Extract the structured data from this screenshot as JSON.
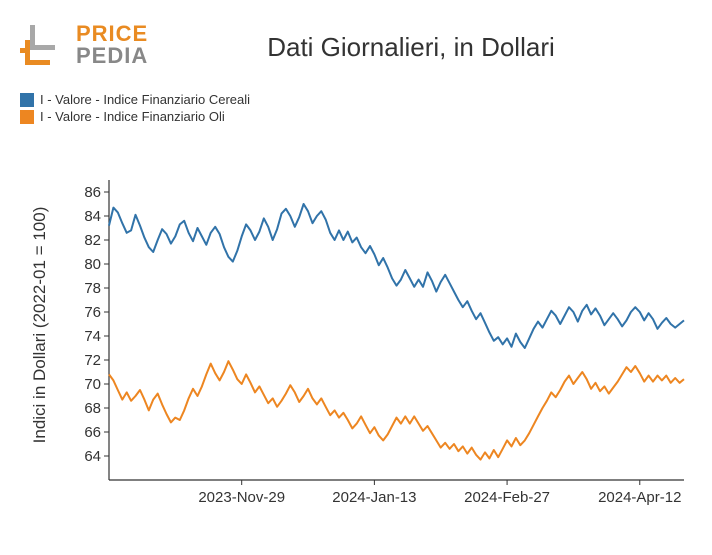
{
  "logo": {
    "line1": "PRICE",
    "line2": "PEDIA",
    "color1": "#e98b22",
    "color2": "#888888",
    "mark_gray": "#a8a8a8",
    "mark_orange": "#e98b22"
  },
  "title": "Dati Giornalieri, in Dollari",
  "y_axis_title": "Indici in Dollari (2022-01 = 100)",
  "chart": {
    "type": "line",
    "background": "#ffffff",
    "axis_color": "#333333",
    "tick_color": "#333333",
    "tick_fontsize": 15,
    "line_width": 2,
    "x_range": [
      0,
      130
    ],
    "y_range": [
      62,
      87
    ],
    "y_ticks": [
      64,
      66,
      68,
      70,
      72,
      74,
      76,
      78,
      80,
      82,
      84,
      86
    ],
    "x_ticks": [
      {
        "pos": 30,
        "label": "2023-Nov-29"
      },
      {
        "pos": 60,
        "label": "2024-Jan-13"
      },
      {
        "pos": 90,
        "label": "2024-Feb-27"
      },
      {
        "pos": 120,
        "label": "2024-Apr-12"
      }
    ],
    "series": [
      {
        "name": "I - Valore - Indice Finanziario Cereali",
        "color": "#3173a9",
        "data": [
          [
            0,
            83.2
          ],
          [
            1,
            84.7
          ],
          [
            2,
            84.3
          ],
          [
            3,
            83.4
          ],
          [
            4,
            82.6
          ],
          [
            5,
            82.8
          ],
          [
            6,
            84.1
          ],
          [
            7,
            83.2
          ],
          [
            8,
            82.2
          ],
          [
            9,
            81.4
          ],
          [
            10,
            81.0
          ],
          [
            11,
            82.0
          ],
          [
            12,
            82.9
          ],
          [
            13,
            82.5
          ],
          [
            14,
            81.7
          ],
          [
            15,
            82.3
          ],
          [
            16,
            83.3
          ],
          [
            17,
            83.6
          ],
          [
            18,
            82.6
          ],
          [
            19,
            81.9
          ],
          [
            20,
            83.0
          ],
          [
            21,
            82.3
          ],
          [
            22,
            81.6
          ],
          [
            23,
            82.6
          ],
          [
            24,
            83.1
          ],
          [
            25,
            82.5
          ],
          [
            26,
            81.4
          ],
          [
            27,
            80.6
          ],
          [
            28,
            80.2
          ],
          [
            29,
            81.1
          ],
          [
            30,
            82.3
          ],
          [
            31,
            83.3
          ],
          [
            32,
            82.8
          ],
          [
            33,
            82.0
          ],
          [
            34,
            82.7
          ],
          [
            35,
            83.8
          ],
          [
            36,
            83.1
          ],
          [
            37,
            82.0
          ],
          [
            38,
            82.9
          ],
          [
            39,
            84.2
          ],
          [
            40,
            84.6
          ],
          [
            41,
            84.0
          ],
          [
            42,
            83.1
          ],
          [
            43,
            83.9
          ],
          [
            44,
            85.0
          ],
          [
            45,
            84.4
          ],
          [
            46,
            83.4
          ],
          [
            47,
            84.0
          ],
          [
            48,
            84.4
          ],
          [
            49,
            83.7
          ],
          [
            50,
            82.6
          ],
          [
            51,
            82.0
          ],
          [
            52,
            82.8
          ],
          [
            53,
            82.0
          ],
          [
            54,
            82.7
          ],
          [
            55,
            81.8
          ],
          [
            56,
            82.2
          ],
          [
            57,
            81.4
          ],
          [
            58,
            80.9
          ],
          [
            59,
            81.5
          ],
          [
            60,
            80.8
          ],
          [
            61,
            79.9
          ],
          [
            62,
            80.5
          ],
          [
            63,
            79.7
          ],
          [
            64,
            78.8
          ],
          [
            65,
            78.2
          ],
          [
            66,
            78.7
          ],
          [
            67,
            79.5
          ],
          [
            68,
            78.8
          ],
          [
            69,
            78.1
          ],
          [
            70,
            78.7
          ],
          [
            71,
            78.1
          ],
          [
            72,
            79.3
          ],
          [
            73,
            78.6
          ],
          [
            74,
            77.7
          ],
          [
            75,
            78.5
          ],
          [
            76,
            79.1
          ],
          [
            77,
            78.4
          ],
          [
            78,
            77.7
          ],
          [
            79,
            77.0
          ],
          [
            80,
            76.4
          ],
          [
            81,
            76.9
          ],
          [
            82,
            76.1
          ],
          [
            83,
            75.4
          ],
          [
            84,
            75.9
          ],
          [
            85,
            75.1
          ],
          [
            86,
            74.3
          ],
          [
            87,
            73.6
          ],
          [
            88,
            73.9
          ],
          [
            89,
            73.3
          ],
          [
            90,
            73.8
          ],
          [
            91,
            73.1
          ],
          [
            92,
            74.2
          ],
          [
            93,
            73.5
          ],
          [
            94,
            73.0
          ],
          [
            95,
            73.8
          ],
          [
            96,
            74.6
          ],
          [
            97,
            75.2
          ],
          [
            98,
            74.7
          ],
          [
            99,
            75.4
          ],
          [
            100,
            76.1
          ],
          [
            101,
            75.7
          ],
          [
            102,
            75.0
          ],
          [
            103,
            75.7
          ],
          [
            104,
            76.4
          ],
          [
            105,
            76.0
          ],
          [
            106,
            75.2
          ],
          [
            107,
            76.1
          ],
          [
            108,
            76.6
          ],
          [
            109,
            75.8
          ],
          [
            110,
            76.3
          ],
          [
            111,
            75.7
          ],
          [
            112,
            74.9
          ],
          [
            113,
            75.4
          ],
          [
            114,
            75.9
          ],
          [
            115,
            75.4
          ],
          [
            116,
            74.8
          ],
          [
            117,
            75.3
          ],
          [
            118,
            76.0
          ],
          [
            119,
            76.4
          ],
          [
            120,
            76.0
          ],
          [
            121,
            75.3
          ],
          [
            122,
            75.9
          ],
          [
            123,
            75.4
          ],
          [
            124,
            74.6
          ],
          [
            125,
            75.1
          ],
          [
            126,
            75.5
          ],
          [
            127,
            75.0
          ],
          [
            128,
            74.7
          ],
          [
            129,
            75.0
          ],
          [
            130,
            75.3
          ]
        ]
      },
      {
        "name": "I - Valore - Indice Finanziario Oli",
        "color": "#ed8621",
        "data": [
          [
            0,
            70.8
          ],
          [
            1,
            70.3
          ],
          [
            2,
            69.5
          ],
          [
            3,
            68.7
          ],
          [
            4,
            69.3
          ],
          [
            5,
            68.6
          ],
          [
            6,
            69.0
          ],
          [
            7,
            69.5
          ],
          [
            8,
            68.7
          ],
          [
            9,
            67.8
          ],
          [
            10,
            68.7
          ],
          [
            11,
            69.2
          ],
          [
            12,
            68.3
          ],
          [
            13,
            67.5
          ],
          [
            14,
            66.8
          ],
          [
            15,
            67.2
          ],
          [
            16,
            67.0
          ],
          [
            17,
            67.8
          ],
          [
            18,
            68.8
          ],
          [
            19,
            69.6
          ],
          [
            20,
            69.0
          ],
          [
            21,
            69.8
          ],
          [
            22,
            70.8
          ],
          [
            23,
            71.7
          ],
          [
            24,
            70.9
          ],
          [
            25,
            70.3
          ],
          [
            26,
            71.0
          ],
          [
            27,
            71.9
          ],
          [
            28,
            71.2
          ],
          [
            29,
            70.4
          ],
          [
            30,
            70.0
          ],
          [
            31,
            70.8
          ],
          [
            32,
            70.1
          ],
          [
            33,
            69.3
          ],
          [
            34,
            69.8
          ],
          [
            35,
            69.1
          ],
          [
            36,
            68.4
          ],
          [
            37,
            68.8
          ],
          [
            38,
            68.1
          ],
          [
            39,
            68.6
          ],
          [
            40,
            69.2
          ],
          [
            41,
            69.9
          ],
          [
            42,
            69.3
          ],
          [
            43,
            68.5
          ],
          [
            44,
            69.0
          ],
          [
            45,
            69.6
          ],
          [
            46,
            68.8
          ],
          [
            47,
            68.3
          ],
          [
            48,
            68.8
          ],
          [
            49,
            68.1
          ],
          [
            50,
            67.4
          ],
          [
            51,
            67.8
          ],
          [
            52,
            67.2
          ],
          [
            53,
            67.6
          ],
          [
            54,
            67.0
          ],
          [
            55,
            66.3
          ],
          [
            56,
            66.7
          ],
          [
            57,
            67.3
          ],
          [
            58,
            66.6
          ],
          [
            59,
            65.9
          ],
          [
            60,
            66.4
          ],
          [
            61,
            65.7
          ],
          [
            62,
            65.3
          ],
          [
            63,
            65.8
          ],
          [
            64,
            66.5
          ],
          [
            65,
            67.2
          ],
          [
            66,
            66.7
          ],
          [
            67,
            67.3
          ],
          [
            68,
            66.7
          ],
          [
            69,
            67.3
          ],
          [
            70,
            66.7
          ],
          [
            71,
            66.1
          ],
          [
            72,
            66.5
          ],
          [
            73,
            65.9
          ],
          [
            74,
            65.3
          ],
          [
            75,
            64.7
          ],
          [
            76,
            65.1
          ],
          [
            77,
            64.6
          ],
          [
            78,
            65.0
          ],
          [
            79,
            64.4
          ],
          [
            80,
            64.8
          ],
          [
            81,
            64.2
          ],
          [
            82,
            64.7
          ],
          [
            83,
            64.1
          ],
          [
            84,
            63.7
          ],
          [
            85,
            64.3
          ],
          [
            86,
            63.8
          ],
          [
            87,
            64.5
          ],
          [
            88,
            63.9
          ],
          [
            89,
            64.6
          ],
          [
            90,
            65.3
          ],
          [
            91,
            64.8
          ],
          [
            92,
            65.5
          ],
          [
            93,
            64.9
          ],
          [
            94,
            65.3
          ],
          [
            95,
            65.9
          ],
          [
            96,
            66.6
          ],
          [
            97,
            67.3
          ],
          [
            98,
            68.0
          ],
          [
            99,
            68.6
          ],
          [
            100,
            69.3
          ],
          [
            101,
            68.9
          ],
          [
            102,
            69.5
          ],
          [
            103,
            70.2
          ],
          [
            104,
            70.7
          ],
          [
            105,
            70.0
          ],
          [
            106,
            70.5
          ],
          [
            107,
            71.0
          ],
          [
            108,
            70.4
          ],
          [
            109,
            69.6
          ],
          [
            110,
            70.1
          ],
          [
            111,
            69.4
          ],
          [
            112,
            69.8
          ],
          [
            113,
            69.2
          ],
          [
            114,
            69.7
          ],
          [
            115,
            70.2
          ],
          [
            116,
            70.8
          ],
          [
            117,
            71.4
          ],
          [
            118,
            71.0
          ],
          [
            119,
            71.5
          ],
          [
            120,
            70.9
          ],
          [
            121,
            70.2
          ],
          [
            122,
            70.7
          ],
          [
            123,
            70.2
          ],
          [
            124,
            70.7
          ],
          [
            125,
            70.3
          ],
          [
            126,
            70.7
          ],
          [
            127,
            70.1
          ],
          [
            128,
            70.5
          ],
          [
            129,
            70.1
          ],
          [
            130,
            70.4
          ]
        ]
      }
    ]
  }
}
